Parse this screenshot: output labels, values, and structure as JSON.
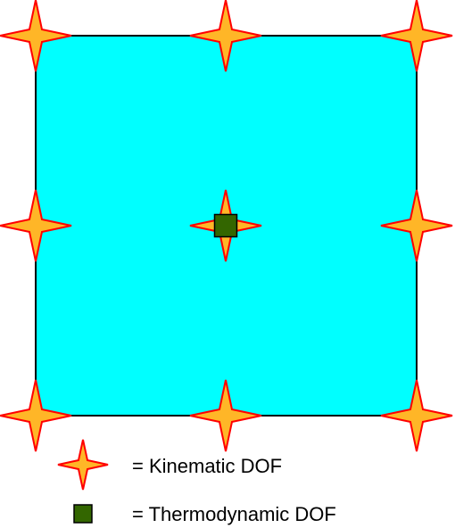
{
  "element": {
    "fill": "#00ffff",
    "stroke": "#000000"
  },
  "kinematic_dof": {
    "icon": "four-point-star-icon",
    "fill": "#ffb627",
    "stroke": "#ff0000",
    "nodes": [
      {
        "id": "top-left"
      },
      {
        "id": "top-middle"
      },
      {
        "id": "top-right"
      },
      {
        "id": "middle-left"
      },
      {
        "id": "center"
      },
      {
        "id": "middle-right"
      },
      {
        "id": "bottom-left"
      },
      {
        "id": "bottom-middle"
      },
      {
        "id": "bottom-right"
      }
    ]
  },
  "thermodynamic_dof": {
    "icon": "square-icon",
    "fill": "#336600",
    "stroke": "#000000",
    "nodes": [
      {
        "id": "center"
      }
    ]
  },
  "legend": {
    "kinematic_label": "= Kinematic DOF",
    "thermodynamic_label": "= Thermodynamic DOF"
  }
}
